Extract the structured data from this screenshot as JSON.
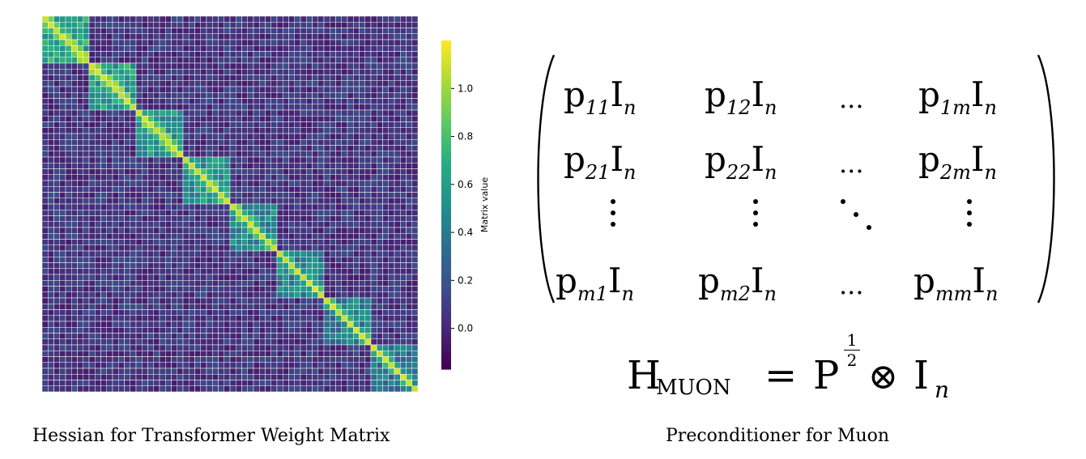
{
  "heatmap": {
    "caption": "Hessian for Transformer Weight Matrix",
    "colorbar": {
      "label": "Matrix value",
      "ticks": [
        "0.0",
        "0.2",
        "0.4",
        "0.6",
        "0.8",
        "1.0"
      ],
      "range": [
        -0.17,
        1.2
      ],
      "colormap": "viridis"
    }
  },
  "chart_data": {
    "type": "heatmap",
    "title": "",
    "grid_size": 64,
    "block_count": 8,
    "block_size": 8,
    "diagonal_value": 1.1,
    "in_block_value": 0.65,
    "background_value": 0.05,
    "vmin": -0.17,
    "vmax": 1.2,
    "colorbar_label": "Matrix value"
  },
  "matrix": {
    "caption": "Preconditioner for Muon",
    "rows": [
      [
        {
          "base": "p",
          "sub": "11",
          "I": "I",
          "n": "n"
        },
        {
          "base": "p",
          "sub": "12",
          "I": "I",
          "n": "n"
        },
        {
          "dots": "..."
        },
        {
          "base": "p",
          "sub": "1m",
          "I": "I",
          "n": "n"
        }
      ],
      [
        {
          "base": "p",
          "sub": "21",
          "I": "I",
          "n": "n"
        },
        {
          "base": "p",
          "sub": "22",
          "I": "I",
          "n": "n"
        },
        {
          "dots": "..."
        },
        {
          "base": "p",
          "sub": "2m",
          "I": "I",
          "n": "n"
        }
      ],
      [
        {
          "base": "p",
          "sub": "m1",
          "I": "I",
          "n": "n"
        },
        {
          "base": "p",
          "sub": "m2",
          "I": "I",
          "n": "n"
        },
        {
          "dots": "..."
        },
        {
          "base": "p",
          "sub": "mm",
          "I": "I",
          "n": "n"
        }
      ]
    ],
    "equation": {
      "lhs": "H",
      "lhs_sub": "MUON",
      "equals": "=",
      "P": "P",
      "exp_num": "1",
      "exp_den": "2",
      "otimes": "⊗",
      "I": "I",
      "I_sub": "n"
    }
  }
}
